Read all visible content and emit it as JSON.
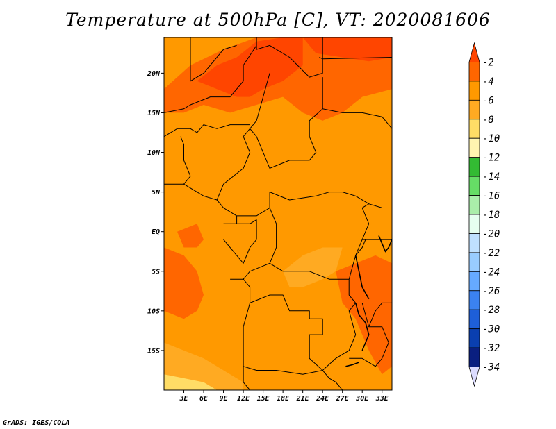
{
  "title": "Temperature at 500hPa [C], VT: 2020081606",
  "credit": "GrADS: IGES/COLA",
  "map": {
    "lon_range": [
      0,
      34.5
    ],
    "lat_range": [
      -20,
      24.5
    ],
    "lat_ticks": [
      {
        "value": 20,
        "label": "20N"
      },
      {
        "value": 15,
        "label": "15N"
      },
      {
        "value": 10,
        "label": "10N"
      },
      {
        "value": 5,
        "label": "5N"
      },
      {
        "value": 0,
        "label": "EQ"
      },
      {
        "value": -5,
        "label": "5S"
      },
      {
        "value": -10,
        "label": "10S"
      },
      {
        "value": -15,
        "label": "15S"
      }
    ],
    "lon_ticks": [
      {
        "value": 3,
        "label": "3E"
      },
      {
        "value": 6,
        "label": "6E"
      },
      {
        "value": 9,
        "label": "9E"
      },
      {
        "value": 12,
        "label": "12E"
      },
      {
        "value": 15,
        "label": "15E"
      },
      {
        "value": 18,
        "label": "18E"
      },
      {
        "value": 21,
        "label": "21E"
      },
      {
        "value": 24,
        "label": "24E"
      },
      {
        "value": 27,
        "label": "27E"
      },
      {
        "value": 30,
        "label": "30E"
      },
      {
        "value": 33,
        "label": "33E"
      }
    ]
  },
  "colorbar": {
    "levels": [
      "-2",
      "-4",
      "-6",
      "-8",
      "-10",
      "-12",
      "-14",
      "-16",
      "-18",
      "-20",
      "-22",
      "-24",
      "-26",
      "-28",
      "-30",
      "-32",
      "-34"
    ],
    "colors": [
      "#ff4500",
      "#ff6600",
      "#ff9900",
      "#ffaa22",
      "#ffdd66",
      "#fff4b0",
      "#33bb33",
      "#66dd66",
      "#aaeeaa",
      "#e6fff0",
      "#bfe0ff",
      "#99ccff",
      "#66aaff",
      "#3b82f0",
      "#1e5fd8",
      "#0a3fb0",
      "#0a1f80",
      "#dcdcff"
    ]
  },
  "regions": [
    {
      "color": "#ff9900",
      "points": [
        [
          0,
          24.5
        ],
        [
          34.5,
          24.5
        ],
        [
          34.5,
          -20
        ],
        [
          0,
          -20
        ]
      ]
    },
    {
      "color": "#ff6600",
      "points": [
        [
          0,
          18
        ],
        [
          4,
          21
        ],
        [
          9,
          23
        ],
        [
          14,
          24.5
        ],
        [
          24,
          24.5
        ],
        [
          34.5,
          24.5
        ],
        [
          34.5,
          18
        ],
        [
          30,
          17
        ],
        [
          27,
          15
        ],
        [
          24,
          14
        ],
        [
          21,
          15
        ],
        [
          18,
          17
        ],
        [
          14,
          16
        ],
        [
          10,
          15
        ],
        [
          6,
          16
        ],
        [
          3,
          15
        ],
        [
          0,
          15
        ]
      ]
    },
    {
      "color": "#ff4500",
      "points": [
        [
          5,
          19
        ],
        [
          8,
          21
        ],
        [
          11,
          22
        ],
        [
          14,
          24
        ],
        [
          18,
          24.5
        ],
        [
          21,
          24.5
        ],
        [
          21,
          21
        ],
        [
          18,
          19
        ],
        [
          15,
          18
        ],
        [
          13,
          17
        ],
        [
          11,
          17
        ],
        [
          8,
          18
        ]
      ]
    },
    {
      "color": "#ff4500",
      "points": [
        [
          21,
          24.5
        ],
        [
          34.5,
          24.5
        ],
        [
          34.5,
          22
        ],
        [
          31,
          21.5
        ],
        [
          27,
          22
        ],
        [
          23,
          22.5
        ]
      ]
    },
    {
      "color": "#ff6600",
      "points": [
        [
          0,
          -2
        ],
        [
          3,
          -3
        ],
        [
          5,
          -5
        ],
        [
          6,
          -8
        ],
        [
          5,
          -10
        ],
        [
          3,
          -11
        ],
        [
          0,
          -10
        ]
      ]
    },
    {
      "color": "#ff6600",
      "points": [
        [
          2,
          0
        ],
        [
          5,
          1
        ],
        [
          6,
          -1
        ],
        [
          5,
          -2
        ],
        [
          3,
          -2
        ]
      ]
    },
    {
      "color": "#ff6600",
      "points": [
        [
          26,
          -5
        ],
        [
          29,
          -4
        ],
        [
          32,
          -3
        ],
        [
          34.5,
          -4
        ],
        [
          34.5,
          -17
        ],
        [
          33,
          -18
        ],
        [
          31,
          -15
        ],
        [
          29,
          -11
        ],
        [
          27,
          -9
        ]
      ]
    },
    {
      "color": "#ffaa22",
      "points": [
        [
          18,
          -5
        ],
        [
          21,
          -3
        ],
        [
          24,
          -2
        ],
        [
          27,
          -2
        ],
        [
          26,
          -5
        ],
        [
          24,
          -6
        ],
        [
          21,
          -7
        ],
        [
          19,
          -7
        ]
      ]
    },
    {
      "color": "#ffaa22",
      "points": [
        [
          0,
          -14
        ],
        [
          3,
          -15
        ],
        [
          6,
          -16
        ],
        [
          8,
          -17
        ],
        [
          10,
          -18
        ],
        [
          12,
          -19
        ],
        [
          12,
          -20
        ],
        [
          0,
          -20
        ]
      ]
    },
    {
      "color": "#ffdd66",
      "points": [
        [
          0,
          -18
        ],
        [
          3,
          -18.5
        ],
        [
          6,
          -19
        ],
        [
          8,
          -20
        ],
        [
          0,
          -20
        ]
      ]
    }
  ],
  "borders": [
    [
      [
        0,
        15
      ],
      [
        3,
        15.5
      ],
      [
        4,
        16
      ],
      [
        7,
        17
      ],
      [
        10,
        17
      ],
      [
        12,
        19
      ],
      [
        12,
        21
      ],
      [
        14,
        23.5
      ]
    ],
    [
      [
        4,
        24.5
      ],
      [
        4,
        19
      ],
      [
        6,
        20
      ],
      [
        9,
        23
      ],
      [
        11,
        23.5
      ]
    ],
    [
      [
        14,
        24.5
      ],
      [
        14,
        23
      ],
      [
        16,
        23.5
      ],
      [
        19,
        22
      ],
      [
        22,
        19.5
      ],
      [
        24,
        20
      ],
      [
        24,
        24.5
      ]
    ],
    [
      [
        24,
        19.5
      ],
      [
        24,
        15.5
      ],
      [
        22,
        14
      ],
      [
        22,
        12
      ],
      [
        23,
        10
      ],
      [
        22,
        9
      ],
      [
        19,
        9
      ],
      [
        16,
        8
      ],
      [
        15,
        10
      ],
      [
        14,
        12
      ],
      [
        13,
        13
      ],
      [
        14,
        14
      ],
      [
        15,
        17
      ],
      [
        16,
        20
      ]
    ],
    [
      [
        23.5,
        22
      ],
      [
        24,
        21.8
      ],
      [
        34.5,
        22
      ]
    ],
    [
      [
        24,
        15.5
      ],
      [
        27,
        15
      ],
      [
        30,
        15
      ],
      [
        33,
        14.5
      ],
      [
        34.5,
        13
      ]
    ],
    [
      [
        13,
        13
      ],
      [
        12,
        12
      ],
      [
        13,
        10
      ],
      [
        12,
        8
      ],
      [
        9,
        6
      ],
      [
        8,
        4
      ],
      [
        6,
        4.5
      ],
      [
        3,
        6
      ]
    ],
    [
      [
        0,
        6
      ],
      [
        3,
        6
      ],
      [
        4,
        7
      ],
      [
        3,
        9
      ],
      [
        3,
        11
      ],
      [
        2.5,
        12
      ]
    ],
    [
      [
        0,
        12
      ],
      [
        2,
        13
      ],
      [
        4,
        13
      ],
      [
        5,
        12.5
      ],
      [
        6,
        13.5
      ],
      [
        8,
        13
      ],
      [
        10,
        13.5
      ],
      [
        13,
        13.5
      ]
    ],
    [
      [
        8,
        4
      ],
      [
        9,
        3
      ],
      [
        11,
        2
      ],
      [
        14,
        2
      ],
      [
        16,
        3
      ],
      [
        16,
        5
      ],
      [
        19,
        4
      ],
      [
        23,
        4.5
      ],
      [
        25,
        5
      ],
      [
        27,
        5
      ],
      [
        29,
        4.5
      ],
      [
        31,
        3.5
      ],
      [
        33,
        3
      ]
    ],
    [
      [
        9,
        1
      ],
      [
        11,
        1
      ],
      [
        11,
        2
      ]
    ],
    [
      [
        11,
        1
      ],
      [
        13,
        1
      ],
      [
        14,
        1.5
      ],
      [
        14,
        -1
      ],
      [
        13,
        -2
      ],
      [
        12,
        -4
      ],
      [
        11,
        -3
      ],
      [
        10,
        -2
      ],
      [
        9,
        -1
      ]
    ],
    [
      [
        16,
        3
      ],
      [
        17,
        1
      ],
      [
        17,
        -2
      ],
      [
        16,
        -4
      ],
      [
        13,
        -5
      ],
      [
        12,
        -6
      ],
      [
        10,
        -6
      ]
    ],
    [
      [
        16,
        -4
      ],
      [
        18,
        -5
      ],
      [
        22,
        -5
      ],
      [
        25,
        -6
      ],
      [
        28,
        -6
      ],
      [
        29,
        -3
      ],
      [
        30,
        -1
      ],
      [
        31,
        1
      ],
      [
        30,
        3
      ],
      [
        31,
        3.5
      ]
    ],
    [
      [
        29,
        -3
      ],
      [
        29.5,
        -2.5
      ],
      [
        30,
        -2
      ],
      [
        30.5,
        -1
      ]
    ],
    [
      [
        12,
        -6
      ],
      [
        13,
        -7
      ],
      [
        13,
        -9
      ],
      [
        12,
        -12
      ],
      [
        12,
        -17
      ],
      [
        14,
        -17.5
      ],
      [
        17,
        -17.5
      ],
      [
        21,
        -18
      ],
      [
        24,
        -17.5
      ]
    ],
    [
      [
        13,
        -9
      ],
      [
        16,
        -8
      ],
      [
        18,
        -8
      ],
      [
        19,
        -10
      ],
      [
        22,
        -10
      ],
      [
        22,
        -11
      ],
      [
        24,
        -11
      ],
      [
        24,
        -13
      ],
      [
        22,
        -13
      ],
      [
        22,
        -16
      ],
      [
        24,
        -17.5
      ],
      [
        26,
        -16
      ],
      [
        28,
        -15
      ],
      [
        29,
        -13
      ],
      [
        28,
        -10
      ],
      [
        29,
        -9
      ],
      [
        28,
        -8
      ],
      [
        28,
        -6
      ]
    ],
    [
      [
        30,
        -1
      ],
      [
        31,
        -1
      ],
      [
        34.5,
        -1
      ]
    ],
    [
      [
        30,
        -9
      ],
      [
        31,
        -12
      ],
      [
        33,
        -12
      ],
      [
        34,
        -14
      ],
      [
        33,
        -16
      ],
      [
        32,
        -17
      ],
      [
        30,
        -16
      ],
      [
        28,
        -16
      ]
    ],
    [
      [
        31,
        -12
      ],
      [
        32,
        -10
      ],
      [
        33,
        -9
      ],
      [
        34.5,
        -9
      ]
    ],
    [
      [
        24,
        -17.5
      ],
      [
        25,
        -18.5
      ],
      [
        26,
        -19
      ],
      [
        27,
        -20
      ]
    ],
    [
      [
        13,
        -20
      ],
      [
        12,
        -19
      ],
      [
        12,
        -17
      ]
    ]
  ],
  "water": [
    [
      [
        29,
        -3
      ],
      [
        29.5,
        -5
      ],
      [
        30,
        -7
      ],
      [
        31,
        -8.5
      ]
    ],
    [
      [
        32.5,
        -0.5
      ],
      [
        33,
        -1.5
      ],
      [
        33.5,
        -2.5
      ],
      [
        34,
        -2
      ],
      [
        34.5,
        -1
      ]
    ],
    [
      [
        29,
        -9
      ],
      [
        29.5,
        -10.5
      ],
      [
        30.5,
        -11.5
      ],
      [
        31,
        -13
      ],
      [
        30.5,
        -14
      ],
      [
        30,
        -15
      ]
    ],
    [
      [
        27.5,
        -17
      ],
      [
        28.5,
        -16.8
      ],
      [
        29.5,
        -16.5
      ]
    ]
  ]
}
